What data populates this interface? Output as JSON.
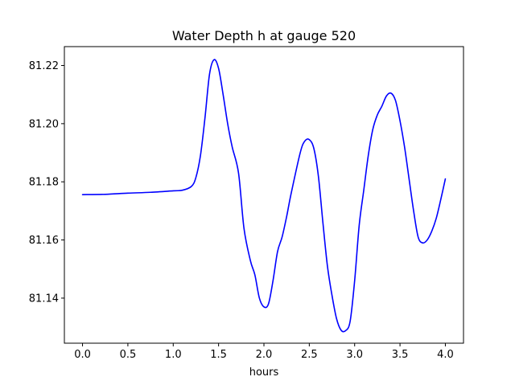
{
  "chart_data": {
    "type": "line",
    "title": "Water Depth h at gauge 520",
    "xlabel": "hours",
    "ylabel": "",
    "xlim": [
      -0.2,
      4.2
    ],
    "ylim": [
      81.1245,
      81.2265
    ],
    "grid": false,
    "x_ticks": [
      0.0,
      0.5,
      1.0,
      1.5,
      2.0,
      2.5,
      3.0,
      3.5,
      4.0
    ],
    "x_tick_labels": [
      "0.0",
      "0.5",
      "1.0",
      "1.5",
      "2.0",
      "2.5",
      "3.0",
      "3.5",
      "4.0"
    ],
    "y_ticks": [
      81.14,
      81.16,
      81.18,
      81.2,
      81.22
    ],
    "y_tick_labels": [
      "81.14",
      "81.16",
      "81.18",
      "81.20",
      "81.22"
    ],
    "series": [
      {
        "name": "",
        "color": "#0000ff",
        "x": [
          0.0,
          0.25,
          0.5,
          0.75,
          1.0,
          1.1,
          1.2,
          1.25,
          1.3,
          1.35,
          1.4,
          1.45,
          1.5,
          1.55,
          1.6,
          1.65,
          1.72,
          1.78,
          1.85,
          1.9,
          1.95,
          2.0,
          2.05,
          2.1,
          2.15,
          2.2,
          2.25,
          2.3,
          2.4,
          2.45,
          2.5,
          2.55,
          2.6,
          2.65,
          2.7,
          2.75,
          2.8,
          2.85,
          2.9,
          2.95,
          3.0,
          3.05,
          3.1,
          3.15,
          3.2,
          3.25,
          3.3,
          3.35,
          3.4,
          3.45,
          3.5,
          3.55,
          3.6,
          3.65,
          3.7,
          3.75,
          3.8,
          3.85,
          3.9,
          3.95,
          4.0
        ],
        "values": [
          81.1756,
          81.1757,
          81.1761,
          81.1764,
          81.1769,
          81.1771,
          81.1784,
          81.1815,
          81.189,
          81.202,
          81.217,
          81.222,
          81.219,
          81.21,
          81.2,
          81.192,
          81.183,
          81.164,
          81.153,
          81.148,
          81.14,
          81.137,
          81.138,
          81.146,
          81.156,
          81.161,
          81.168,
          81.176,
          81.19,
          81.194,
          81.1945,
          81.1915,
          81.182,
          81.166,
          81.151,
          81.141,
          81.133,
          81.129,
          81.1288,
          81.132,
          81.146,
          81.165,
          81.177,
          81.189,
          81.198,
          81.203,
          81.206,
          81.2095,
          81.2105,
          81.208,
          81.201,
          81.192,
          81.181,
          81.17,
          81.161,
          81.159,
          81.16,
          81.163,
          81.1675,
          81.174,
          81.181
        ]
      }
    ]
  }
}
